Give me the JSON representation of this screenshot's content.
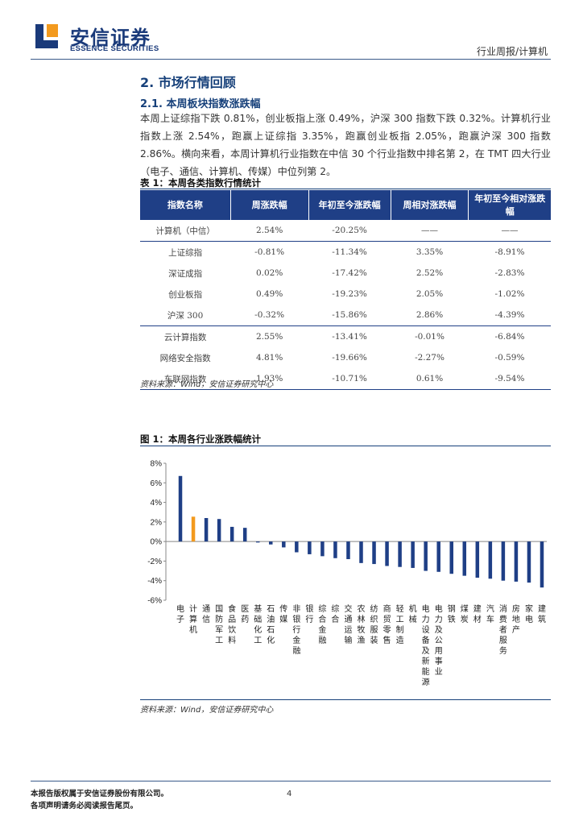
{
  "header": {
    "logo_cn": "安信证券",
    "logo_en": "ESSENCE SECURITIES",
    "report_type": "行业周报/计算机"
  },
  "section": {
    "heading": "2. 市场行情回顾",
    "subheading": "2.1. 本周板块指数涨跌幅",
    "paragraph": "本周上证综指下跌 0.81%，创业板指上涨 0.49%，沪深 300 指数下跌 0.32%。计算机行业指数上涨 2.54%，跑赢上证综指 3.35%，跑赢创业板指 2.05%，跑赢沪深 300 指数 2.86%。横向来看，本周计算机行业指数在中信 30 个行业指数中排名第 2，在 TMT 四大行业（电子、通信、计算机、传媒）中位列第 2。"
  },
  "table": {
    "caption": "表 1：本周各类指数行情统计",
    "headers": [
      "指数名称",
      "周涨跌幅",
      "年初至今涨跌幅",
      "周相对涨跌幅",
      "年初至今相对涨跌幅"
    ],
    "rows": [
      [
        "计算机（中信）",
        "2.54%",
        "-20.25%",
        "——",
        "——"
      ],
      [
        "上证综指",
        "-0.81%",
        "-11.34%",
        "3.35%",
        "-8.91%"
      ],
      [
        "深证成指",
        "0.02%",
        "-17.42%",
        "2.52%",
        "-2.83%"
      ],
      [
        "创业板指",
        "0.49%",
        "-19.23%",
        "2.05%",
        "-1.02%"
      ],
      [
        "沪深 300",
        "-0.32%",
        "-15.86%",
        "2.86%",
        "-4.39%"
      ],
      [
        "云计算指数",
        "2.55%",
        "-13.41%",
        "-0.01%",
        "-6.84%"
      ],
      [
        "网络安全指数",
        "4.81%",
        "-19.66%",
        "-2.27%",
        "-0.59%"
      ],
      [
        "车联网指数",
        "1.93%",
        "-10.71%",
        "0.61%",
        "-9.54%"
      ]
    ],
    "source": "资料来源：Wind，安信证券研究中心"
  },
  "figure": {
    "caption": "图 1：本周各行业涨跌幅统计",
    "source": "资料来源：Wind，安信证券研究中心"
  },
  "colors": {
    "primary": "#1f3f86",
    "highlight": "#f39a1e",
    "bar": "#1f3f86"
  },
  "chart_data": {
    "type": "bar",
    "title": "",
    "xlabel": "",
    "ylabel": "",
    "ylim": [
      -6,
      8
    ],
    "yticks": [
      "8%",
      "6%",
      "4%",
      "2%",
      "0%",
      "-2%",
      "-4%",
      "-6%"
    ],
    "categories": [
      "电子",
      "计算机",
      "通信",
      "国防军工",
      "食品饮料",
      "医药",
      "基础化工",
      "石油石化",
      "传媒",
      "非银行金融",
      "银行",
      "综合金融",
      "综合",
      "交通运输",
      "农林牧渔",
      "纺织服装",
      "商贸零售",
      "轻工制造",
      "机械",
      "电力设备及新能源",
      "电力及公用事业",
      "钢铁",
      "煤炭",
      "建材",
      "汽车",
      "消费者服务",
      "房地产",
      "家电",
      "建筑"
    ],
    "values": [
      6.7,
      2.54,
      2.4,
      2.3,
      1.5,
      1.4,
      -0.1,
      -0.3,
      -0.6,
      -1.1,
      -1.3,
      -1.5,
      -1.7,
      -1.8,
      -2.2,
      -2.3,
      -2.5,
      -2.6,
      -2.7,
      -3.0,
      -3.1,
      -3.3,
      -3.5,
      -3.7,
      -3.8,
      -4.0,
      -4.1,
      -4.2,
      -4.7
    ],
    "highlight_category": "计算机"
  },
  "footer": {
    "line1": "本报告版权属于安信证券股份有限公司。",
    "line2": "各项声明请务必阅读报告尾页。",
    "page": "4"
  }
}
